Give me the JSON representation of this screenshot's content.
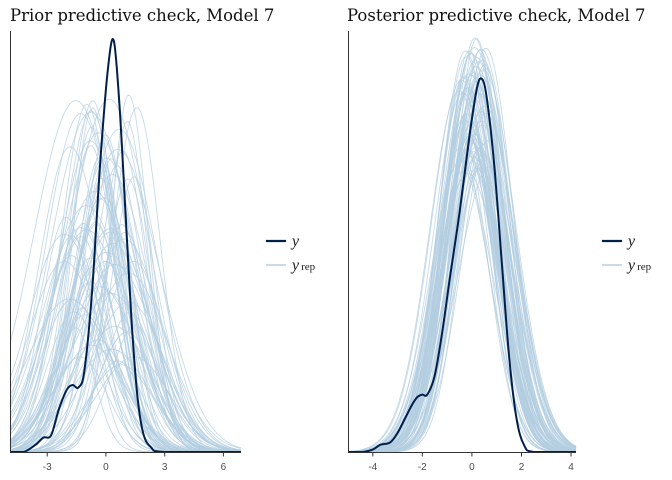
{
  "colors": {
    "y": "#011f4b",
    "yrep": "#b3cde0",
    "axis": "#333333"
  },
  "chart_data": [
    {
      "type": "line",
      "title": "Prior predictive check, Model 7",
      "xlabel": "",
      "ylabel": "",
      "xlim": [
        -4.9,
        6.9
      ],
      "ylim": [
        0,
        0.88
      ],
      "xticks": [
        -3,
        0,
        3,
        6
      ],
      "xtick_labels": [
        "-3",
        "0",
        "3",
        "6"
      ],
      "grid": false,
      "legend": {
        "position": "right",
        "entries": [
          {
            "main": "y",
            "sub": ""
          },
          {
            "main": "y",
            "sub": "rep"
          }
        ]
      },
      "series": [
        {
          "name": "y",
          "role": "observed",
          "x": [
            -4.9,
            -4.2,
            -3.6,
            -3.2,
            -2.8,
            -2.4,
            -2.0,
            -1.7,
            -1.4,
            -1.1,
            -0.7,
            -0.3,
            0.1,
            0.4,
            0.7,
            1.0,
            1.3,
            1.6,
            1.9,
            2.3,
            3.0,
            6.9
          ],
          "y": [
            0.0,
            0.0,
            0.015,
            0.03,
            0.035,
            0.09,
            0.13,
            0.14,
            0.135,
            0.17,
            0.34,
            0.6,
            0.8,
            0.86,
            0.72,
            0.5,
            0.28,
            0.12,
            0.04,
            0.01,
            0.0,
            0.0
          ]
        },
        {
          "name": "yrep",
          "role": "replicated",
          "generator": {
            "count": 80,
            "seed": 7,
            "mean": [
              -1.8,
              1.4
            ],
            "sd": [
              1.0,
              2.2
            ],
            "peak": [
              0.18,
              0.75
            ],
            "xmin": -4.9,
            "xmax": 6.9
          }
        }
      ]
    },
    {
      "type": "line",
      "title": "Posterior predictive check, Model 7",
      "xlabel": "",
      "ylabel": "",
      "xlim": [
        -5.0,
        4.2
      ],
      "ylim": [
        0,
        0.88
      ],
      "xticks": [
        -4,
        -2,
        0,
        2,
        4
      ],
      "xtick_labels": [
        "-4",
        "-2",
        "0",
        "2",
        "4"
      ],
      "grid": false,
      "legend": {
        "position": "right",
        "entries": [
          {
            "main": "y",
            "sub": ""
          },
          {
            "main": "y",
            "sub": "rep"
          }
        ]
      },
      "series": [
        {
          "name": "y",
          "role": "observed",
          "x": [
            -5.0,
            -4.4,
            -4.0,
            -3.7,
            -3.3,
            -3.0,
            -2.7,
            -2.4,
            -2.2,
            -2.0,
            -1.8,
            -1.5,
            -1.2,
            -0.9,
            -0.5,
            -0.1,
            0.2,
            0.4,
            0.6,
            0.9,
            1.2,
            1.5,
            1.8,
            2.1,
            2.5,
            4.2
          ],
          "y": [
            0.0,
            0.0,
            0.005,
            0.015,
            0.02,
            0.04,
            0.07,
            0.1,
            0.115,
            0.12,
            0.12,
            0.16,
            0.25,
            0.36,
            0.5,
            0.66,
            0.76,
            0.78,
            0.74,
            0.6,
            0.4,
            0.2,
            0.07,
            0.015,
            0.0,
            0.0
          ]
        },
        {
          "name": "yrep",
          "role": "replicated",
          "generator": {
            "count": 80,
            "seed": 13,
            "mean": [
              -0.3,
              0.45
            ],
            "sd": [
              0.95,
              1.35
            ],
            "peak": [
              0.58,
              0.84
            ],
            "xmin": -5.0,
            "xmax": 4.2
          }
        }
      ]
    }
  ]
}
